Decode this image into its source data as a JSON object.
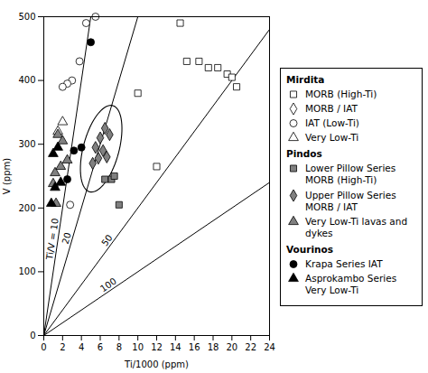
{
  "chart_data": {
    "type": "scatter",
    "xlabel": "Ti/1000 (ppm)",
    "ylabel": "V (ppm)",
    "xlim": [
      0,
      24
    ],
    "ylim": [
      0,
      500
    ],
    "xticks": [
      0,
      2,
      4,
      6,
      8,
      10,
      12,
      14,
      16,
      18,
      20,
      22,
      24
    ],
    "yticks": [
      0,
      100,
      200,
      300,
      400,
      500
    ],
    "grid": false,
    "legend": "right",
    "ratio_lines": [
      {
        "value": 10,
        "label": "Ti/V = 10"
      },
      {
        "value": 20,
        "label": "20"
      },
      {
        "value": 50,
        "label": "50"
      },
      {
        "value": 100,
        "label": "100"
      }
    ],
    "ellipse": {
      "cx": 6.1,
      "cy": 293,
      "width": 3.8,
      "height": 140,
      "angle": -15
    },
    "series": [
      {
        "group": "Mirdita",
        "name": "MORB (High-Ti)",
        "marker": "square",
        "color": "#ffffff",
        "x": [
          14.5,
          15.2,
          16.5,
          17.5,
          18.5,
          19.5,
          20.0,
          20.5,
          10.0,
          12.0
        ],
        "y": [
          490,
          430,
          430,
          420,
          420,
          410,
          405,
          390,
          380,
          265
        ]
      },
      {
        "group": "Mirdita",
        "name": "MORB / IAT",
        "marker": "diamond",
        "color": "#ffffff",
        "x": [],
        "y": []
      },
      {
        "group": "Mirdita",
        "name": "IAT (Low-Ti)",
        "marker": "circle",
        "color": "#ffffff",
        "x": [
          4.5,
          5.5,
          3.8,
          3.0,
          2.5,
          2.0,
          2.8
        ],
        "y": [
          490,
          500,
          430,
          400,
          395,
          390,
          205
        ]
      },
      {
        "group": "Mirdita",
        "name": "Very Low-Ti",
        "marker": "triangle",
        "color": "#ffffff",
        "x": [
          1.5,
          2.0
        ],
        "y": [
          320,
          335
        ]
      },
      {
        "group": "Pindos",
        "name": "Lower Pillow Series MORB (High-Ti)",
        "marker": "square",
        "color": "#808080",
        "x": [
          6.5,
          7.2,
          7.5,
          8.0
        ],
        "y": [
          245,
          245,
          250,
          205
        ]
      },
      {
        "group": "Pindos",
        "name": "Upper Pillow Series MORB / IAT",
        "marker": "diamond",
        "color": "#808080",
        "x": [
          5.5,
          6.0,
          6.5,
          7.0,
          5.2,
          5.8,
          6.3,
          6.7
        ],
        "y": [
          295,
          310,
          325,
          315,
          270,
          278,
          290,
          280
        ]
      },
      {
        "group": "Pindos",
        "name": "Very Low-Ti lavas and dykes",
        "marker": "triangle",
        "color": "#808080",
        "x": [
          1.0,
          1.5,
          2.0,
          1.2,
          1.8,
          2.5,
          1.3
        ],
        "y": [
          238,
          315,
          305,
          255,
          265,
          275,
          207
        ]
      },
      {
        "group": "Vourinos",
        "name": "Krapa Series IAT",
        "marker": "circle",
        "color": "#000000",
        "x": [
          5.0,
          4.0,
          3.2,
          2.5
        ],
        "y": [
          460,
          295,
          290,
          245
        ]
      },
      {
        "group": "Vourinos",
        "name": "Asprokambo Series Very Low-Ti",
        "marker": "triangle",
        "color": "#000000",
        "x": [
          1.0,
          1.5,
          1.2,
          1.8,
          0.8
        ],
        "y": [
          285,
          295,
          232,
          240,
          207
        ]
      }
    ]
  }
}
